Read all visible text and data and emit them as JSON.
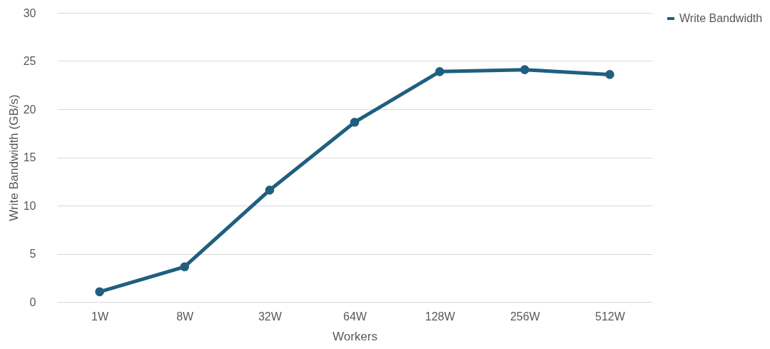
{
  "chart_data": {
    "type": "line",
    "xlabel": "Workers",
    "ylabel": "Write Bandwidth (GB/s)",
    "categories": [
      "1W",
      "8W",
      "32W",
      "64W",
      "128W",
      "256W",
      "512W"
    ],
    "series": [
      {
        "name": "Write Bandwidth",
        "color": "#1f5f7f",
        "values": [
          1.05,
          3.65,
          11.6,
          18.65,
          23.9,
          24.1,
          23.6
        ]
      }
    ],
    "ylim": [
      0,
      30
    ],
    "yticks": [
      0,
      5,
      10,
      15,
      20,
      25,
      30
    ],
    "grid": "y",
    "legend": "right",
    "marker": "circle",
    "line_style": "solid"
  }
}
